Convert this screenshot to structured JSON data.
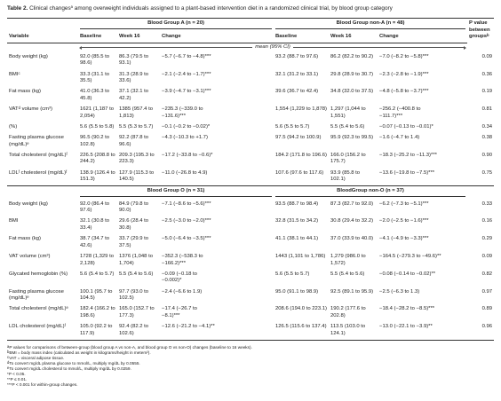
{
  "title": {
    "label": "Table 2.",
    "text_before": "Clinical changes",
    "sup": "a",
    "text_after": "among overweight individuals assigned to a plant-based intervention diet in a randomized clinical trial, by blood group category"
  },
  "columns": [
    "Variable",
    "Baseline",
    "Week 16",
    "Change",
    "Baseline",
    "Week 16",
    "Change"
  ],
  "p_header": {
    "text": "P value between groups",
    "sup": "b"
  },
  "mean_label": "mean (95% CI)",
  "sections": [
    {
      "group1": "Blood Group A (n = 20)",
      "group2": "Blood Group non-A (n = 48)",
      "rows": [
        {
          "variable": [
            "Body weight (kg)"
          ],
          "cells": [
            "92.0 (85.5 to 98.6)",
            "86.3 (79.5 to 93.1)",
            "−5.7 (−6.7 to −4.8)***",
            "93.2 (88.7 to 97.6)",
            "86.2 (82.2 to 90.2)",
            "−7.0 (−8.2 to −5.8)***",
            "0.09"
          ]
        },
        {
          "variable": [
            "BMI",
            "c"
          ],
          "cells": [
            "33.3 (31.1 to 35.5)",
            "31.3 (28.9 to 33.6)",
            "−2.1 (−2.4 to −1.7)***",
            "32.1 (31.2 to 33.1)",
            "29.8 (28.9 to 30.7)",
            "−2.3 (−2.8 to −1.9)***",
            "0.36"
          ]
        },
        {
          "variable": [
            "Fat mass (kg)"
          ],
          "cells": [
            "41.0 (36.3 to 45.8)",
            "37.1 (32.1 to 42.2)",
            "−3.9 (−4.7 to −3.1)***",
            "39.6 (36.7 to 42.4)",
            "34.8 (32.0 to 37.5)",
            "−4.8 (−5.8 to −3.7)***",
            "0.19"
          ]
        },
        {
          "variable": [
            "VAT",
            "d",
            " volume (cm³)"
          ],
          "cells": [
            "1621 (1,187 to 2,054)",
            "1385 (957.4 to 1,813)",
            "−235.3 (−339.0 to −131.6)***",
            "1,554 (1,229 to 1,878)",
            "1,297 (1,044 to 1,551)",
            "−256.2 (−400.8 to −111.7)***",
            "0.81"
          ]
        },
        {
          "variable": [
            "(%)"
          ],
          "cells": [
            "5.6 (5.5 to 5.8)",
            "5.5 (5.3 to 5.7)",
            "−0.1 (−0.2 to −0.02)*",
            "5.6 (5.5 to 5.7)",
            "5.5 (5.4 to 5.6)",
            "−0.07 (−0.13 to −0.01)*",
            "0.34"
          ]
        },
        {
          "variable": [
            "Fasting plasma glucose (mg/dL)",
            "e"
          ],
          "cells": [
            "96.5 (90.2 to 102.8)",
            "92.2 (87.8 to 96.6)",
            "−4.3 (−10.3 to +1.7)",
            "97.5 (94.2 to 100.9)",
            "95.9 (92.3 to 99.5)",
            "−1.6 (−4.7 to 1.4)",
            "0.38"
          ]
        },
        {
          "variable": [
            "Total cholesterol (mg/dL)",
            "f"
          ],
          "cells": [
            "226.5 (208.8 to 244.2)",
            "209.3 (195.3 to 223.3)",
            "−17.2 (−33.8 to −0.6)*",
            "184.2 (171.8 to 196.6)",
            "166.0 (156.2 to 175.7)",
            "−18.3 (−25.2 to −11.3)***",
            "0.90"
          ]
        },
        {
          "variable": [
            "LDL",
            "f",
            " cholesterol (mg/dL)",
            "f"
          ],
          "cells": [
            "138.9 (126.4 to 151.3)",
            "127.9 (115.3 to 140.5)",
            "−11.0 (−26.8 to 4.9)",
            "107.6 (97.6 to 117.6)",
            "93.9 (85.8 to 102.1)",
            "−13.6 (−19.8 to −7.5)***",
            "0.75"
          ]
        }
      ]
    },
    {
      "group1": "Blood Group O (n = 31)",
      "group2": "BloodGroup non-O (n = 37)",
      "rows": [
        {
          "variable": [
            "Body weight (kg)"
          ],
          "cells": [
            "92.0 (86.4 to 97.6)",
            "84.9 (79.8 to 90.0)",
            "−7.1 (−8.6 to −5.6)***",
            "93.5 (88.7 to 98.4)",
            "87.3 (82.7 to 92.0)",
            "−6.2 (−7.3 to −5.1)***",
            "0.33"
          ]
        },
        {
          "variable": [
            "BMI"
          ],
          "cells": [
            "32.1 (30.8 to 33.4)",
            "29.6 (28.4 to 30.8)",
            "−2.5 (−3.0 to −2.0)***",
            "32.8 (31.5 to 34.2)",
            "30.8 (29.4 to 32.2)",
            "−2.0 (−2.5 to −1.6)***",
            "0.16"
          ]
        },
        {
          "variable": [
            "Fat mass (kg)"
          ],
          "cells": [
            "38.7 (34.7 to 42.6)",
            "33.7 (29.9 to 37.5)",
            "−5.0 (−6.4 to −3.5)***",
            "41.1 (38.1 to 44.1)",
            "37.0 (33.9 to 40.0)",
            "−4.1 (−4.9 to −3.3)***",
            "0.29"
          ]
        },
        {
          "variable": [
            "VAT volume (cm³)"
          ],
          "cells": [
            "1728 (1,329 to 2,128)",
            "1376 (1,048 to 1,704)",
            "−352.3 (−538.3 to −166.2)***",
            "1443 (1,101 to 1,786)",
            "1,279 (986.0 to 1,572)",
            "−164.5 (−279.3 to −49.6)**",
            "0.09"
          ]
        },
        {
          "variable": [
            "Glycated hemoglobin (%)"
          ],
          "cells": [
            "5.6 (5.4 to 5.7)",
            "5.5 (5.4 to 5.6)",
            "−0.09 (−0.18 to −0.002)*",
            "5.6 (5.5 to 5.7)",
            "5.5 (5.4 to 5.6)",
            "−0.08 (−0.14 to −0.02)**",
            "0.82"
          ]
        },
        {
          "variable": [
            "Fasting plasma glucose (mg/dL)",
            "e"
          ],
          "cells": [
            "100.1 (95.7 to 104.5)",
            "97.7 (93.0 to 102.5)",
            "−2.4 (−6.6 to 1.9)",
            "95.0 (91.1 to 98.9)",
            "92.5 (89.1 to 95.9)",
            "−2.5 (−6.3 to 1.3)",
            "0.97"
          ]
        },
        {
          "variable": [
            "Total cholesterol (mg/dL)",
            "e"
          ],
          "cells": [
            "182.4 (166.2 to 198.6)",
            "165.0 (152.7 to 177.3)",
            "−17.4 (−26.7 to −8.1)***",
            "208.6 (194.0 to 223.1)",
            "190.2 (177.6 to 202.8)",
            "−18.4 (−28.2 to −8.5)***",
            "0.89"
          ]
        },
        {
          "variable": [
            "LDL cholesterol (mg/dL)",
            "f"
          ],
          "cells": [
            "105.0 (92.2 to 117.9)",
            "92.4 (82.2 to 102.6)",
            "−12.6 (−21.2 to −4.1)**",
            "126.5 (115.6 to 137.4)",
            "113.5 (103.0 to 124.1)",
            "−13.0 (−22.1 to −3.9)**",
            "0.96"
          ]
        }
      ]
    }
  ],
  "footnotes": [
    {
      "sup": "a",
      "text": "P values for comparisons of between-group (blood group A vs non-A, and blood group O vs non-O) changes (baseline to 16 weeks)."
    },
    {
      "sup": "b",
      "text": "BMI = body mass index (calculated as weight in kilograms/height in meters²)."
    },
    {
      "sup": "c",
      "text": "VAT = visceral adipose tissue."
    },
    {
      "sup": "d",
      "text": "To convert mg/dL plasma glucose to mmol/L, multiply mg/dL by 0.0555."
    },
    {
      "sup": "e",
      "text": "To convert mg/dL cholesterol to mmol/L, multiply mg/dL by 0.0259."
    },
    {
      "text": "*P < 0.05."
    },
    {
      "text": "**P ≤ 0.01."
    },
    {
      "text": "***P < 0.001 for within-group changes."
    }
  ]
}
